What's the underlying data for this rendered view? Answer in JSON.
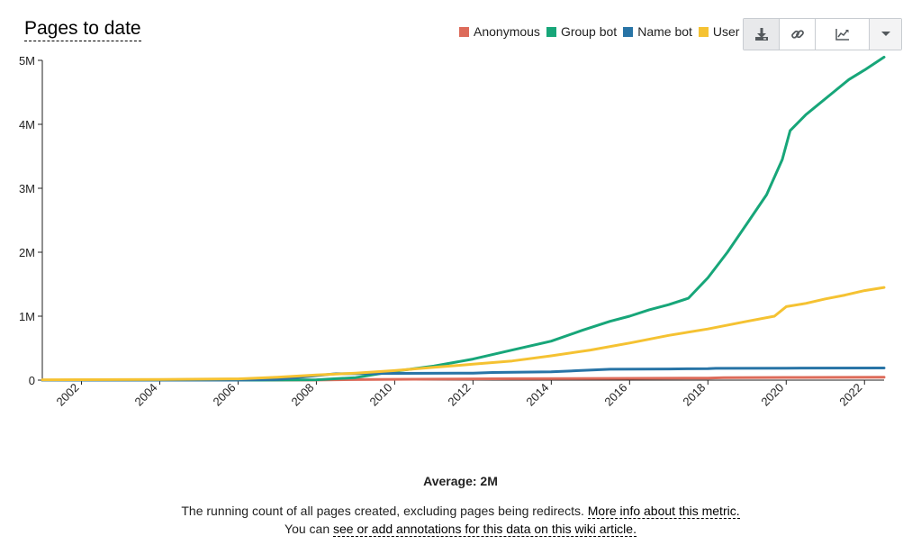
{
  "title": "Pages to date",
  "legend": [
    {
      "label": "Anonymous",
      "color": "#dd6b5a"
    },
    {
      "label": "Group bot",
      "color": "#17a679"
    },
    {
      "label": "Name bot",
      "color": "#2874a6"
    },
    {
      "label": "User",
      "color": "#f5c232"
    }
  ],
  "toolbar": {
    "download_icon": "download-icon",
    "link_icon": "link-icon",
    "chart_icon": "line-chart-icon",
    "dropdown_icon": "caret-down-icon"
  },
  "footer": {
    "average": "Average: 2M",
    "description": "The running count of all pages created, excluding pages being redirects.",
    "more_info_link": "More info about this metric.",
    "annotation_prefix": "You can",
    "annotation_link": "see or add annotations for this data on this wiki article."
  },
  "chart_data": {
    "type": "line",
    "title": "Pages to date",
    "xlabel": "",
    "ylabel": "",
    "xlim": [
      2001.0,
      2022.5
    ],
    "ylim": [
      0,
      5000000
    ],
    "x_ticks": [
      "2002",
      "2004",
      "2006",
      "2008",
      "2010",
      "2012",
      "2014",
      "2016",
      "2018",
      "2020",
      "2022"
    ],
    "y_ticks": [
      "0",
      "1M",
      "2M",
      "3M",
      "4M",
      "5M"
    ],
    "grid": false,
    "legend_position": "top-right",
    "series": [
      {
        "name": "Anonymous",
        "color": "#dd6b5a",
        "points": [
          [
            2001.0,
            0
          ],
          [
            2006.0,
            0
          ],
          [
            2008.0,
            2000
          ],
          [
            2009.0,
            8000
          ],
          [
            2011.0,
            15000
          ],
          [
            2013.0,
            22000
          ],
          [
            2016.0,
            28000
          ],
          [
            2018.0,
            32000
          ],
          [
            2018.4,
            40000
          ],
          [
            2020.0,
            42000
          ],
          [
            2022.5,
            45000
          ]
        ]
      },
      {
        "name": "Group bot",
        "color": "#17a679",
        "points": [
          [
            2001.0,
            0
          ],
          [
            2006.5,
            0
          ],
          [
            2008.0,
            5000
          ],
          [
            2009.0,
            40000
          ],
          [
            2010.0,
            140000
          ],
          [
            2011.0,
            220000
          ],
          [
            2012.0,
            330000
          ],
          [
            2013.0,
            470000
          ],
          [
            2014.0,
            610000
          ],
          [
            2014.8,
            780000
          ],
          [
            2015.5,
            920000
          ],
          [
            2016.0,
            1000000
          ],
          [
            2016.5,
            1100000
          ],
          [
            2017.0,
            1180000
          ],
          [
            2017.5,
            1280000
          ],
          [
            2018.0,
            1600000
          ],
          [
            2018.5,
            2000000
          ],
          [
            2019.0,
            2450000
          ],
          [
            2019.5,
            2900000
          ],
          [
            2019.9,
            3450000
          ],
          [
            2020.1,
            3900000
          ],
          [
            2020.5,
            4150000
          ],
          [
            2020.8,
            4300000
          ],
          [
            2021.2,
            4500000
          ],
          [
            2021.6,
            4700000
          ],
          [
            2022.0,
            4850000
          ],
          [
            2022.5,
            5050000
          ]
        ]
      },
      {
        "name": "Name bot",
        "color": "#2874a6",
        "points": [
          [
            2001.0,
            0
          ],
          [
            2006.0,
            0
          ],
          [
            2007.0,
            10000
          ],
          [
            2008.0,
            70000
          ],
          [
            2008.5,
            100000
          ],
          [
            2010.0,
            105000
          ],
          [
            2012.0,
            110000
          ],
          [
            2012.5,
            120000
          ],
          [
            2014.0,
            130000
          ],
          [
            2014.7,
            150000
          ],
          [
            2015.5,
            170000
          ],
          [
            2017.0,
            175000
          ],
          [
            2018.0,
            180000
          ],
          [
            2018.2,
            185000
          ],
          [
            2020.0,
            188000
          ],
          [
            2022.5,
            190000
          ]
        ]
      },
      {
        "name": "User",
        "color": "#f5c232",
        "points": [
          [
            2001.0,
            5000
          ],
          [
            2004.0,
            10000
          ],
          [
            2006.0,
            20000
          ],
          [
            2007.0,
            45000
          ],
          [
            2008.0,
            80000
          ],
          [
            2009.0,
            110000
          ],
          [
            2010.0,
            150000
          ],
          [
            2011.0,
            200000
          ],
          [
            2012.0,
            250000
          ],
          [
            2013.0,
            300000
          ],
          [
            2014.0,
            380000
          ],
          [
            2015.0,
            470000
          ],
          [
            2016.0,
            580000
          ],
          [
            2017.0,
            700000
          ],
          [
            2018.0,
            800000
          ],
          [
            2019.0,
            920000
          ],
          [
            2019.7,
            1000000
          ],
          [
            2020.0,
            1150000
          ],
          [
            2020.5,
            1200000
          ],
          [
            2021.0,
            1270000
          ],
          [
            2021.5,
            1330000
          ],
          [
            2022.0,
            1400000
          ],
          [
            2022.5,
            1450000
          ]
        ]
      }
    ]
  }
}
